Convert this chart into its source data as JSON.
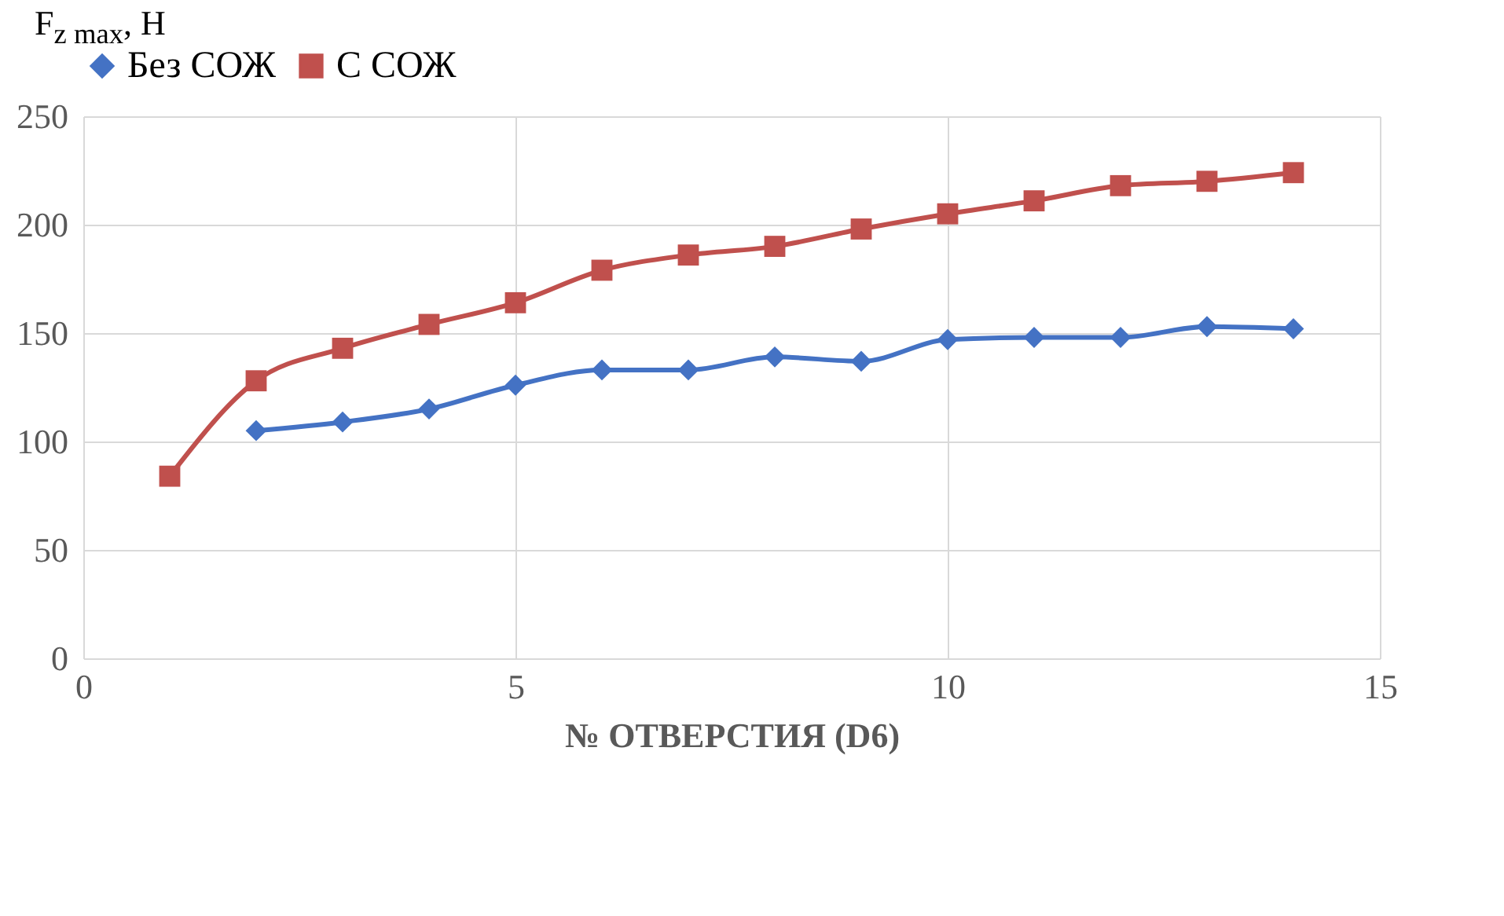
{
  "chart_data": {
    "type": "line",
    "ylabel": "F$_{z max}$, Н",
    "xlabel": "№ ОТВЕРСТИЯ (D6)",
    "x": [
      1,
      2,
      3,
      4,
      5,
      6,
      7,
      8,
      9,
      10,
      11,
      12,
      13,
      14
    ],
    "series": [
      {
        "name": "Без СОЖ",
        "color": "#4472c4",
        "marker": "diamond",
        "values": [
          null,
          105,
          109,
          115,
          126,
          133,
          133,
          139,
          137,
          147,
          148,
          148,
          153,
          152
        ]
      },
      {
        "name": "С СОЖ",
        "color": "#c0504d",
        "marker": "square",
        "values": [
          84,
          128,
          143,
          154,
          164,
          179,
          186,
          190,
          198,
          205,
          211,
          218,
          220,
          224
        ]
      }
    ],
    "xlim": [
      0,
      15
    ],
    "xticks": [
      0,
      5,
      10,
      15
    ],
    "ylim": [
      0,
      250
    ],
    "yticks": [
      0,
      50,
      100,
      150,
      200,
      250
    ],
    "grid": true,
    "legend": "top"
  }
}
